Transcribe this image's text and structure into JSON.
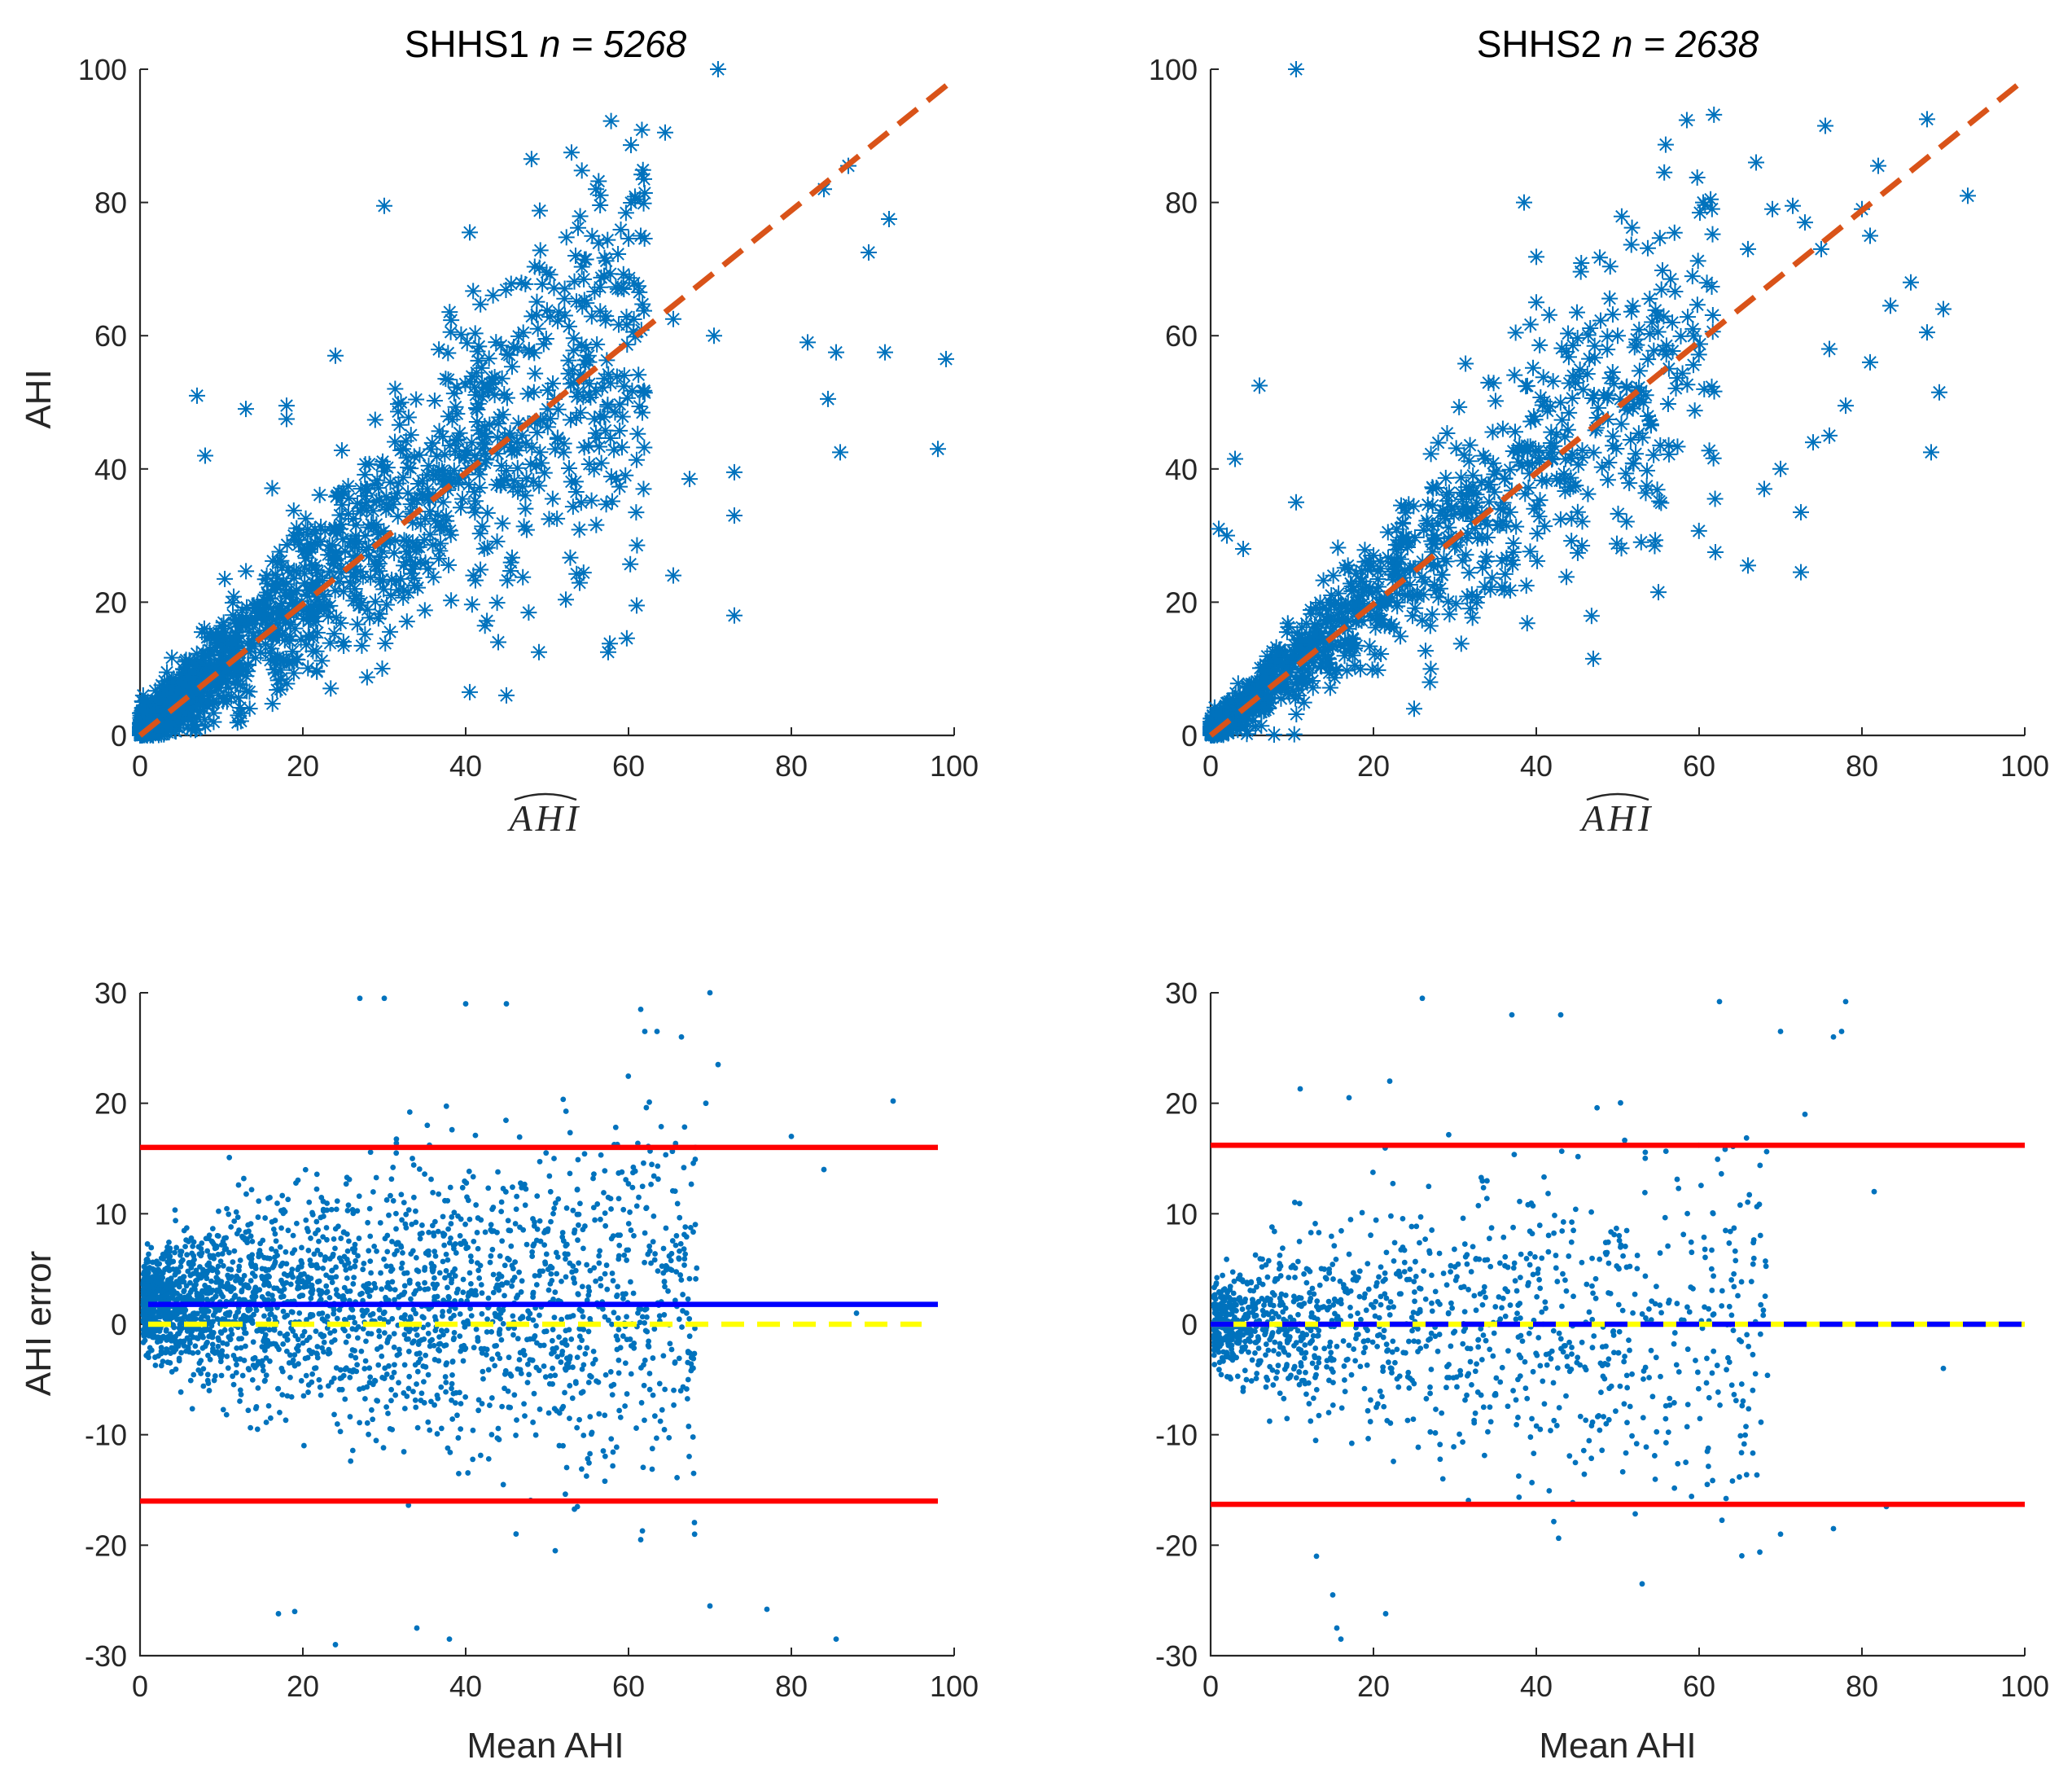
{
  "chart_data": [
    {
      "panel": "top-left",
      "type": "scatter",
      "title_prefix": "SHHS1 ",
      "title_n": "n = 5268",
      "xlabel": "AHI",
      "ylabel": "AHI",
      "xlim": [
        0,
        100
      ],
      "ylim": [
        0,
        100
      ],
      "xticks": [
        "0",
        "20",
        "40",
        "60",
        "80",
        "100"
      ],
      "yticks": [
        "0",
        "20",
        "40",
        "60",
        "80",
        "100"
      ],
      "marker": "asterisk",
      "color": "#0072BD",
      "reference_line": {
        "x": [
          0,
          100
        ],
        "y": [
          0,
          98.5
        ],
        "color": "#D95319",
        "style": "dashed"
      },
      "outliers": [
        [
          71,
          100
        ],
        [
          64.5,
          90.5
        ],
        [
          53,
          87.5
        ],
        [
          87,
          85.5
        ],
        [
          84,
          82
        ],
        [
          56,
          82
        ],
        [
          30,
          79.5
        ],
        [
          92,
          77.5
        ],
        [
          40.5,
          75.5
        ],
        [
          61.5,
          75
        ],
        [
          89.5,
          72.5
        ],
        [
          53.5,
          72
        ],
        [
          57,
          69
        ],
        [
          99,
          56.5
        ],
        [
          91.5,
          57.5
        ],
        [
          85.5,
          57.5
        ],
        [
          82,
          59
        ],
        [
          70.5,
          60
        ],
        [
          65.5,
          62.5
        ],
        [
          98,
          43
        ],
        [
          84.5,
          50.5
        ],
        [
          86,
          42.5
        ],
        [
          73,
          39.5
        ],
        [
          67.5,
          38.5
        ],
        [
          73,
          33
        ],
        [
          61,
          19.5
        ],
        [
          73,
          18
        ],
        [
          57.5,
          12.5
        ],
        [
          65.5,
          24
        ],
        [
          45,
          6
        ],
        [
          40.5,
          6.5
        ],
        [
          24,
          57
        ],
        [
          7,
          51
        ],
        [
          13,
          49
        ],
        [
          18,
          49.5
        ],
        [
          8,
          42
        ],
        [
          18,
          47.5
        ],
        [
          49,
          12.5
        ],
        [
          44,
          14
        ]
      ],
      "dense_count": 1500,
      "dense_seed": 11
    },
    {
      "panel": "top-right",
      "type": "scatter",
      "title_prefix": "SHHS2 ",
      "title_n": "n = 2638",
      "xlabel": "AHI",
      "ylabel": "",
      "xlim": [
        0,
        100
      ],
      "ylim": [
        0,
        100
      ],
      "xticks": [
        "0",
        "20",
        "40",
        "60",
        "80",
        "100"
      ],
      "yticks": [
        "0",
        "20",
        "40",
        "60",
        "80",
        "100"
      ],
      "marker": "asterisk",
      "color": "#0072BD",
      "reference_line": {
        "x": [
          0,
          100
        ],
        "y": [
          0,
          98.5
        ],
        "color": "#D95319",
        "style": "dashed"
      },
      "outliers": [
        [
          10.5,
          100
        ],
        [
          88,
          92.5
        ],
        [
          75.5,
          91.5
        ],
        [
          67,
          86
        ],
        [
          82,
          85.5
        ],
        [
          60.5,
          80
        ],
        [
          69,
          79
        ],
        [
          71.5,
          79.5
        ],
        [
          38.5,
          80
        ],
        [
          93,
          81
        ],
        [
          80,
          79
        ],
        [
          73,
          77
        ],
        [
          81,
          75
        ],
        [
          75,
          73
        ],
        [
          66,
          73
        ],
        [
          83.5,
          64.5
        ],
        [
          86,
          68
        ],
        [
          90,
          64
        ],
        [
          88,
          60.5
        ],
        [
          76,
          58
        ],
        [
          81,
          56
        ],
        [
          89.5,
          51.5
        ],
        [
          88.5,
          42.5
        ],
        [
          78,
          49.5
        ],
        [
          76,
          45
        ],
        [
          74,
          44
        ],
        [
          70,
          40
        ],
        [
          72.5,
          33.5
        ],
        [
          72.5,
          24.5
        ],
        [
          66,
          25.5
        ],
        [
          62,
          27.5
        ],
        [
          68,
          37
        ],
        [
          55,
          21.5
        ],
        [
          47,
          11.5
        ],
        [
          25,
          4
        ],
        [
          6,
          52.5
        ],
        [
          3,
          41.5
        ],
        [
          10.5,
          35
        ],
        [
          1,
          31
        ],
        [
          2,
          30
        ],
        [
          4,
          28
        ],
        [
          56.5,
          68.5
        ],
        [
          40,
          65
        ],
        [
          45,
          63.5
        ],
        [
          50,
          60
        ]
      ],
      "dense_count": 1100,
      "dense_seed": 23
    },
    {
      "panel": "bottom-left",
      "type": "scatter",
      "title": "",
      "xlabel": "Mean AHI",
      "ylabel": "AHI error",
      "xlim": [
        0,
        100
      ],
      "ylim": [
        -30,
        30
      ],
      "xticks": [
        "0",
        "20",
        "40",
        "60",
        "80",
        "100"
      ],
      "yticks": [
        "-30",
        "-20",
        "-10",
        "0",
        "10",
        "20",
        "30"
      ],
      "marker": "dot",
      "color": "#0072BD",
      "hlines": [
        {
          "y": 16,
          "x": [
            0,
            98
          ],
          "color": "#FF0000",
          "style": "solid",
          "name": "upper-limit-line"
        },
        {
          "y": 1.8,
          "x": [
            1,
            98
          ],
          "color": "#0000FF",
          "style": "solid",
          "name": "mean-bias-line"
        },
        {
          "y": 0,
          "x": [
            1,
            96
          ],
          "color": "#FFFF00",
          "style": "dashed",
          "name": "zero-line"
        },
        {
          "y": -16,
          "x": [
            0,
            98
          ],
          "color": "#FF0000",
          "style": "solid",
          "name": "lower-limit-line"
        }
      ],
      "outliers": [
        [
          92.5,
          20.2
        ],
        [
          80,
          17
        ],
        [
          84,
          14
        ],
        [
          70,
          30
        ],
        [
          66.5,
          26
        ],
        [
          71,
          23.5
        ],
        [
          69.5,
          20
        ],
        [
          61.5,
          28.5
        ],
        [
          62,
          26.5
        ],
        [
          63.5,
          26.5
        ],
        [
          70,
          -25.5
        ],
        [
          77,
          -25.8
        ],
        [
          85.5,
          -28.5
        ],
        [
          68,
          -13.5
        ],
        [
          61.5,
          -19.5
        ],
        [
          51,
          -20.5
        ],
        [
          38,
          -28.5
        ],
        [
          34,
          -27.5
        ],
        [
          24,
          -29
        ],
        [
          19,
          -26
        ],
        [
          17,
          -26.2
        ],
        [
          45,
          29
        ],
        [
          40,
          29
        ],
        [
          30,
          29.5
        ],
        [
          27,
          29.5
        ],
        [
          88,
          1
        ]
      ],
      "dense_count": 2600,
      "dense_seed": 37
    },
    {
      "panel": "bottom-right",
      "type": "scatter",
      "title": "",
      "xlabel": "Mean AHI",
      "ylabel": "",
      "xlim": [
        0,
        100
      ],
      "ylim": [
        -30,
        30
      ],
      "xticks": [
        "0",
        "20",
        "40",
        "60",
        "80",
        "100"
      ],
      "yticks": [
        "-30",
        "-20",
        "-10",
        "0",
        "10",
        "20",
        "30"
      ],
      "marker": "dot",
      "color": "#0072BD",
      "hlines": [
        {
          "y": 16.2,
          "x": [
            0,
            100
          ],
          "color": "#FF0000",
          "style": "solid",
          "name": "upper-limit-line"
        },
        {
          "y": 0,
          "x": [
            0,
            100
          ],
          "color": "#FFFF00",
          "style": "solid",
          "name": "zero-line"
        },
        {
          "y": 0,
          "x": [
            0,
            100
          ],
          "color": "#0000FF",
          "style": "dashed",
          "name": "mean-bias-line"
        },
        {
          "y": -16.3,
          "x": [
            0,
            100
          ],
          "color": "#FF0000",
          "style": "solid",
          "name": "lower-limit-line"
        }
      ],
      "outliers": [
        [
          78,
          29.2
        ],
        [
          62.5,
          29.2
        ],
        [
          26,
          29.5
        ],
        [
          43,
          28
        ],
        [
          37,
          28
        ],
        [
          77.5,
          26.5
        ],
        [
          76.5,
          26
        ],
        [
          70,
          26.5
        ],
        [
          73,
          19
        ],
        [
          81.5,
          12
        ],
        [
          90,
          -4
        ],
        [
          83,
          -16.5
        ],
        [
          76.5,
          -18.5
        ],
        [
          70,
          -19
        ],
        [
          61,
          -14.5
        ],
        [
          53,
          -23.5
        ],
        [
          15,
          -24.5
        ],
        [
          16,
          -28.5
        ],
        [
          15.5,
          -27.5
        ],
        [
          21.5,
          -26.2
        ],
        [
          13,
          -21
        ],
        [
          11,
          21.3
        ],
        [
          17,
          20.5
        ],
        [
          22,
          22
        ]
      ],
      "dense_count": 1300,
      "dense_seed": 53
    }
  ]
}
